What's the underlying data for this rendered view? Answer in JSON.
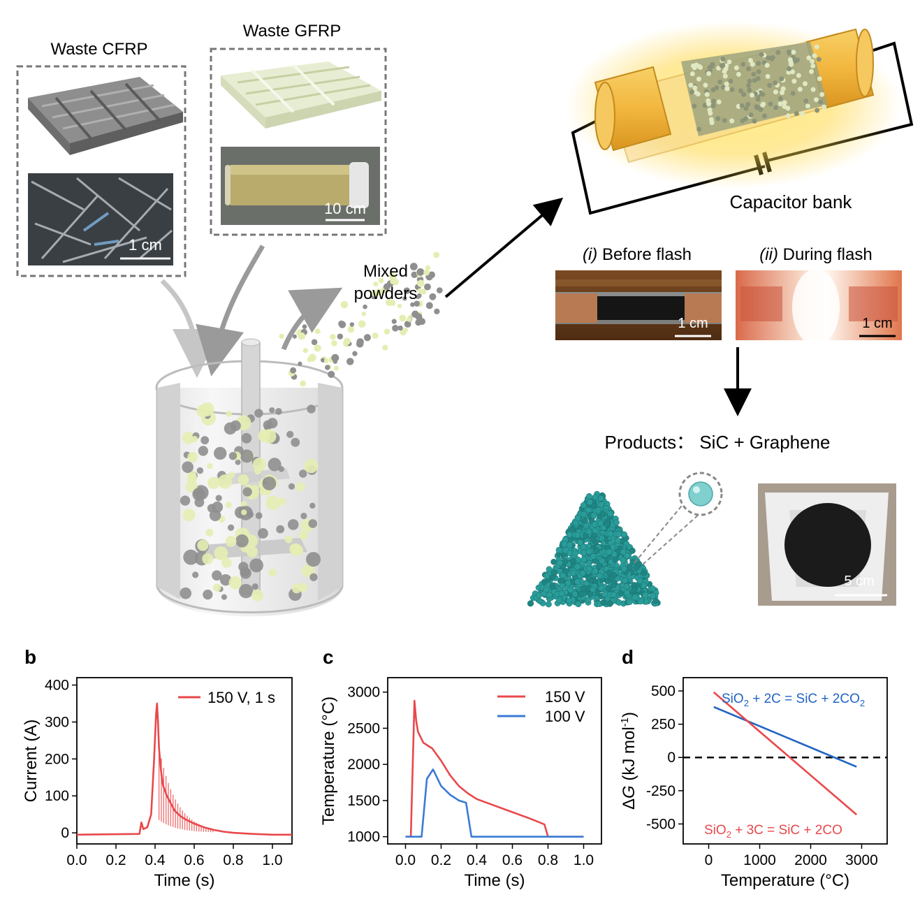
{
  "schematic": {
    "cfrp_title": "Waste CFRP",
    "gfrp_title": "Waste GFRP",
    "cfrp_scale": "1 cm",
    "gfrp_scale": "10 cm",
    "mixed_powders_line1": "Mixed",
    "mixed_powders_line2": "powders",
    "capacitor_label": "Capacitor bank",
    "before_flash_num": "(i)",
    "before_flash_text": " Before flash",
    "during_flash_num": "(ii)",
    "during_flash_text": " During flash",
    "before_scale": "1 cm",
    "during_scale": "1 cm",
    "products_label": "Products： SiC + Graphene",
    "product_scale": "5 cm"
  },
  "colors": {
    "red": "#e8484b",
    "blue": "#3a7bd5",
    "dark_blue": "#1f63c4",
    "teal": "#2a9d9a"
  },
  "chart_data": [
    {
      "panel": "b",
      "type": "line",
      "xlabel": "Time (s)",
      "ylabel": "Current (A)",
      "xlim": [
        0.0,
        1.1
      ],
      "ylim": [
        -30,
        420
      ],
      "xticks": [
        0.0,
        0.2,
        0.4,
        0.6,
        0.8,
        1.0
      ],
      "yticks": [
        0,
        100,
        200,
        300,
        400
      ],
      "xtick_labels": [
        "0.0",
        "0.2",
        "0.4",
        "0.6",
        "0.8",
        "1.0"
      ],
      "ytick_labels": [
        "0",
        "100",
        "200",
        "300",
        "400"
      ],
      "legend": "top-right",
      "series": [
        {
          "name": "150 V, 1 s",
          "color": "#e8484b",
          "x": [
            0.0,
            0.32,
            0.33,
            0.34,
            0.36,
            0.38,
            0.395,
            0.405,
            0.41,
            0.415,
            0.42,
            0.43,
            0.44,
            0.46,
            0.48,
            0.5,
            0.53,
            0.56,
            0.6,
            0.65,
            0.7,
            0.75,
            0.8,
            0.9,
            1.0,
            1.1
          ],
          "y": [
            -5,
            -3,
            28,
            10,
            15,
            50,
            200,
            320,
            350,
            300,
            230,
            170,
            130,
            100,
            80,
            60,
            45,
            35,
            25,
            15,
            8,
            3,
            0,
            -3,
            -5,
            -5
          ]
        }
      ]
    },
    {
      "panel": "c",
      "type": "line",
      "xlabel": "Time (s)",
      "ylabel": "Temperature (°C)",
      "xlim": [
        -0.1,
        1.1
      ],
      "ylim": [
        900,
        3200
      ],
      "xticks": [
        0.0,
        0.2,
        0.4,
        0.6,
        0.8,
        1.0
      ],
      "yticks": [
        1000,
        1500,
        2000,
        2500,
        3000
      ],
      "xtick_labels": [
        "0.0",
        "0.2",
        "0.4",
        "0.6",
        "0.8",
        "1.0"
      ],
      "ytick_labels": [
        "1000",
        "1500",
        "2000",
        "2500",
        "3000"
      ],
      "legend": "top-right",
      "series": [
        {
          "name": "150 V",
          "color": "#e8484b",
          "x": [
            0.0,
            0.03,
            0.05,
            0.06,
            0.07,
            0.1,
            0.15,
            0.2,
            0.25,
            0.3,
            0.35,
            0.4,
            0.5,
            0.6,
            0.7,
            0.78,
            0.8,
            1.0
          ],
          "y": [
            1000,
            1000,
            2880,
            2600,
            2450,
            2300,
            2220,
            2050,
            1850,
            1700,
            1600,
            1520,
            1430,
            1340,
            1250,
            1170,
            1000,
            1000
          ]
        },
        {
          "name": "100 V",
          "color": "#3a7bd5",
          "x": [
            0.0,
            0.09,
            0.12,
            0.155,
            0.2,
            0.25,
            0.3,
            0.34,
            0.37,
            0.4,
            1.0
          ],
          "y": [
            1000,
            1000,
            1800,
            1930,
            1700,
            1580,
            1500,
            1470,
            1000,
            1000,
            1000
          ]
        }
      ]
    },
    {
      "panel": "d",
      "type": "line",
      "xlabel": "Temperature (°C)",
      "ylabel": "ΔG (kJ mol⁻¹)",
      "xlim": [
        -500,
        3500
      ],
      "ylim": [
        -650,
        600
      ],
      "xticks": [
        0,
        1000,
        2000,
        3000
      ],
      "yticks": [
        -500,
        -250,
        0,
        250,
        500
      ],
      "xtick_labels": [
        "0",
        "1000",
        "2000",
        "3000"
      ],
      "ytick_labels": [
        "-500",
        "-250",
        "0",
        "250",
        "500"
      ],
      "zero_line": "dashed",
      "series": [
        {
          "name": "SiO₂ + 2C = SiC + 2CO₂",
          "color": "#1f63c4",
          "x": [
            100,
            2900
          ],
          "y": [
            380,
            -70
          ]
        },
        {
          "name": "SiO₂ + 3C = SiC + 2CO",
          "color": "#e8484b",
          "x": [
            100,
            2900
          ],
          "y": [
            490,
            -430
          ]
        }
      ],
      "annotation_blue": [
        "SiO",
        "2",
        " + 2C = SiC + 2CO",
        "2"
      ],
      "annotation_red": [
        "SiO",
        "2",
        " + 3C = SiC + 2CO"
      ]
    }
  ],
  "panel_letters": [
    "b",
    "c",
    "d"
  ]
}
